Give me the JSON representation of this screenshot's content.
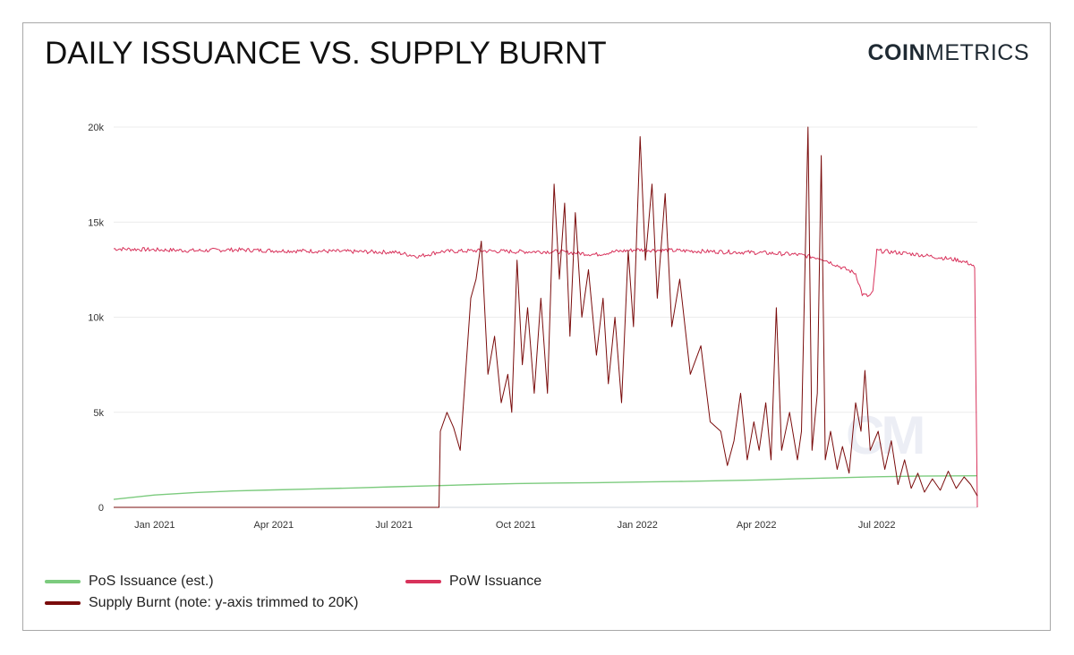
{
  "title": "DAILY ISSUANCE VS. SUPPLY BURNT",
  "brand": {
    "bold": "COIN",
    "light": "METRICS",
    "watermark": "CM"
  },
  "colors": {
    "pos": "#7ccb7e",
    "pow": "#d8325b",
    "burnt": "#7a0c0c",
    "grid": "#ececec"
  },
  "chart_data": {
    "type": "line",
    "title": "DAILY ISSUANCE VS. SUPPLY BURNT",
    "xlabel": "",
    "ylabel": "",
    "ylim": [
      0,
      20000
    ],
    "xlim": [
      "2020-12-01",
      "2022-09-15"
    ],
    "grid": true,
    "legend_position": "bottom",
    "note": "y-axis trimmed to 20K",
    "y_ticks": [
      {
        "value": 0,
        "label": "0"
      },
      {
        "value": 5000,
        "label": "5k"
      },
      {
        "value": 10000,
        "label": "10k"
      },
      {
        "value": 15000,
        "label": "15k"
      },
      {
        "value": 20000,
        "label": "20k"
      }
    ],
    "x_ticks": [
      {
        "value": "2021-01-01",
        "label": "Jan 2021"
      },
      {
        "value": "2021-04-01",
        "label": "Apr 2021"
      },
      {
        "value": "2021-07-01",
        "label": "Jul 2021"
      },
      {
        "value": "2021-10-01",
        "label": "Oct 2021"
      },
      {
        "value": "2022-01-01",
        "label": "Jan 2022"
      },
      {
        "value": "2022-04-01",
        "label": "Apr 2022"
      },
      {
        "value": "2022-07-01",
        "label": "Jul 2022"
      }
    ],
    "series": [
      {
        "name": "PoS Issuance (est.)",
        "key": "pos",
        "color": "#7ccb7e",
        "points": [
          [
            "2020-12-01",
            420
          ],
          [
            "2021-01-01",
            650
          ],
          [
            "2021-02-01",
            780
          ],
          [
            "2021-03-01",
            860
          ],
          [
            "2021-04-01",
            920
          ],
          [
            "2021-05-01",
            970
          ],
          [
            "2021-06-01",
            1020
          ],
          [
            "2021-07-01",
            1080
          ],
          [
            "2021-08-01",
            1140
          ],
          [
            "2021-09-01",
            1200
          ],
          [
            "2021-10-01",
            1250
          ],
          [
            "2021-11-01",
            1280
          ],
          [
            "2021-12-01",
            1300
          ],
          [
            "2022-01-01",
            1330
          ],
          [
            "2022-02-01",
            1360
          ],
          [
            "2022-03-01",
            1400
          ],
          [
            "2022-04-01",
            1440
          ],
          [
            "2022-05-01",
            1500
          ],
          [
            "2022-06-01",
            1560
          ],
          [
            "2022-07-01",
            1610
          ],
          [
            "2022-08-01",
            1640
          ],
          [
            "2022-09-15",
            1660
          ]
        ]
      },
      {
        "name": "PoW Issuance",
        "key": "pow",
        "color": "#d8325b",
        "points": [
          [
            "2020-12-01",
            13600
          ],
          [
            "2021-01-01",
            13550
          ],
          [
            "2021-02-01",
            13500
          ],
          [
            "2021-03-01",
            13550
          ],
          [
            "2021-04-01",
            13500
          ],
          [
            "2021-05-01",
            13480
          ],
          [
            "2021-06-01",
            13450
          ],
          [
            "2021-07-01",
            13420
          ],
          [
            "2021-07-20",
            13200
          ],
          [
            "2021-08-05",
            13450
          ],
          [
            "2021-09-01",
            13500
          ],
          [
            "2021-10-01",
            13450
          ],
          [
            "2021-11-01",
            13450
          ],
          [
            "2021-12-01",
            13300
          ],
          [
            "2021-12-15",
            13450
          ],
          [
            "2022-01-01",
            13550
          ],
          [
            "2022-02-01",
            13500
          ],
          [
            "2022-03-01",
            13450
          ],
          [
            "2022-04-01",
            13400
          ],
          [
            "2022-05-01",
            13300
          ],
          [
            "2022-05-20",
            13100
          ],
          [
            "2022-06-05",
            12600
          ],
          [
            "2022-06-15",
            12300
          ],
          [
            "2022-06-20",
            11200
          ],
          [
            "2022-06-25",
            11100
          ],
          [
            "2022-06-28",
            11300
          ],
          [
            "2022-07-01",
            13500
          ],
          [
            "2022-08-01",
            13300
          ],
          [
            "2022-09-01",
            13000
          ],
          [
            "2022-09-10",
            12800
          ],
          [
            "2022-09-13",
            12600
          ],
          [
            "2022-09-15",
            0
          ]
        ]
      },
      {
        "name": "Supply Burnt (note: y-axis trimmed to 20K)",
        "key": "burnt",
        "color": "#7a0c0c",
        "points": [
          [
            "2020-12-01",
            0
          ],
          [
            "2021-08-04",
            0
          ],
          [
            "2021-08-05",
            4000
          ],
          [
            "2021-08-10",
            5000
          ],
          [
            "2021-08-15",
            4200
          ],
          [
            "2021-08-20",
            3000
          ],
          [
            "2021-08-25",
            8000
          ],
          [
            "2021-08-28",
            11000
          ],
          [
            "2021-09-01",
            12000
          ],
          [
            "2021-09-05",
            14000
          ],
          [
            "2021-09-10",
            7000
          ],
          [
            "2021-09-15",
            9000
          ],
          [
            "2021-09-20",
            5500
          ],
          [
            "2021-09-25",
            7000
          ],
          [
            "2021-09-28",
            5000
          ],
          [
            "2021-10-02",
            13000
          ],
          [
            "2021-10-06",
            7500
          ],
          [
            "2021-10-10",
            10500
          ],
          [
            "2021-10-15",
            6000
          ],
          [
            "2021-10-20",
            11000
          ],
          [
            "2021-10-25",
            6000
          ],
          [
            "2021-10-30",
            17000
          ],
          [
            "2021-11-03",
            12000
          ],
          [
            "2021-11-07",
            16000
          ],
          [
            "2021-11-11",
            9000
          ],
          [
            "2021-11-15",
            15500
          ],
          [
            "2021-11-20",
            10000
          ],
          [
            "2021-11-25",
            12500
          ],
          [
            "2021-12-01",
            8000
          ],
          [
            "2021-12-06",
            11000
          ],
          [
            "2021-12-10",
            6500
          ],
          [
            "2021-12-15",
            10000
          ],
          [
            "2021-12-20",
            5500
          ],
          [
            "2021-12-25",
            13500
          ],
          [
            "2021-12-29",
            9500
          ],
          [
            "2022-01-03",
            19500
          ],
          [
            "2022-01-07",
            13000
          ],
          [
            "2022-01-12",
            17000
          ],
          [
            "2022-01-16",
            11000
          ],
          [
            "2022-01-22",
            16500
          ],
          [
            "2022-01-27",
            9500
          ],
          [
            "2022-02-02",
            12000
          ],
          [
            "2022-02-10",
            7000
          ],
          [
            "2022-02-18",
            8500
          ],
          [
            "2022-02-25",
            4500
          ],
          [
            "2022-03-05",
            4000
          ],
          [
            "2022-03-10",
            2200
          ],
          [
            "2022-03-15",
            3500
          ],
          [
            "2022-03-20",
            6000
          ],
          [
            "2022-03-25",
            2500
          ],
          [
            "2022-03-30",
            4500
          ],
          [
            "2022-04-03",
            3000
          ],
          [
            "2022-04-08",
            5500
          ],
          [
            "2022-04-12",
            2500
          ],
          [
            "2022-04-16",
            10500
          ],
          [
            "2022-04-20",
            3000
          ],
          [
            "2022-04-26",
            5000
          ],
          [
            "2022-05-02",
            2500
          ],
          [
            "2022-05-05",
            4000
          ],
          [
            "2022-05-10",
            20000
          ],
          [
            "2022-05-13",
            3000
          ],
          [
            "2022-05-17",
            6000
          ],
          [
            "2022-05-20",
            18500
          ],
          [
            "2022-05-23",
            2500
          ],
          [
            "2022-05-27",
            4000
          ],
          [
            "2022-06-01",
            2000
          ],
          [
            "2022-06-05",
            3200
          ],
          [
            "2022-06-10",
            1800
          ],
          [
            "2022-06-15",
            5500
          ],
          [
            "2022-06-19",
            4000
          ],
          [
            "2022-06-22",
            7200
          ],
          [
            "2022-06-26",
            3000
          ],
          [
            "2022-07-02",
            4000
          ],
          [
            "2022-07-07",
            2000
          ],
          [
            "2022-07-12",
            3500
          ],
          [
            "2022-07-17",
            1200
          ],
          [
            "2022-07-22",
            2500
          ],
          [
            "2022-07-27",
            1000
          ],
          [
            "2022-08-01",
            1800
          ],
          [
            "2022-08-06",
            800
          ],
          [
            "2022-08-12",
            1500
          ],
          [
            "2022-08-18",
            900
          ],
          [
            "2022-08-24",
            1900
          ],
          [
            "2022-08-30",
            1000
          ],
          [
            "2022-09-05",
            1600
          ],
          [
            "2022-09-10",
            1200
          ],
          [
            "2022-09-15",
            600
          ]
        ]
      }
    ]
  }
}
